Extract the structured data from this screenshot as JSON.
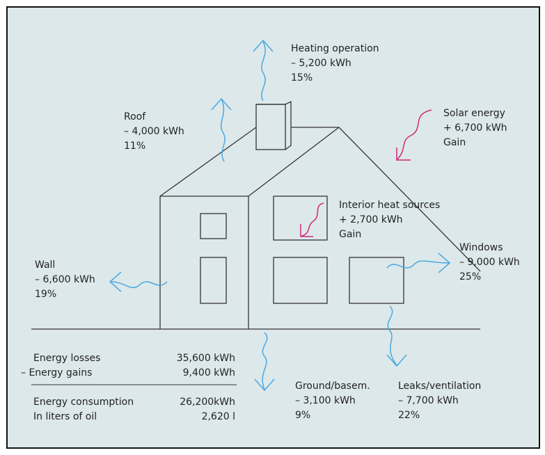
{
  "labels": [
    {
      "title": "Heating operation",
      "value": "– 5,200 kWh",
      "share": "15%"
    },
    {
      "title": "Roof",
      "value": "– 4,000 kWh",
      "share": "11%"
    },
    {
      "title": "Solar energy",
      "value": "+ 6,700 kWh",
      "share": "Gain"
    },
    {
      "title": "Interior heat sources",
      "value": "+ 2,700 kWh",
      "share": "Gain"
    },
    {
      "title": "Wall",
      "value": "– 6,600 kWh",
      "share": "19%"
    },
    {
      "title": "Windows",
      "value": "– 9,000 kWh",
      "share": "25%"
    },
    {
      "title": "Ground/basem.",
      "value": "– 3,100 kWh",
      "share": "9%"
    },
    {
      "title": "Leaks/ventilation",
      "value": "– 7,700 kWh",
      "share": "22%"
    }
  ],
  "summary": {
    "rows": [
      [
        "Energy losses",
        "35,600 kWh"
      ],
      [
        "– Energy gains",
        "9,400 kWh"
      ],
      [
        "Energy consumption",
        "26,200kWh"
      ],
      [
        "In liters of oil",
        "2,620 l"
      ]
    ]
  }
}
